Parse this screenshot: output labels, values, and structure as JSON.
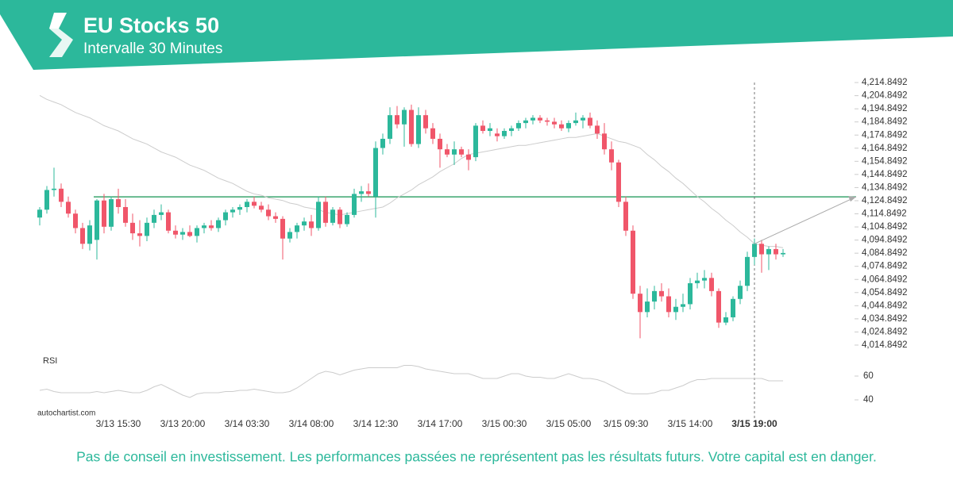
{
  "header": {
    "title": "EU Stocks 50",
    "subtitle": "Intervalle 30 Minutes"
  },
  "chart_data": {
    "type": "candlestick",
    "categories": [
      null,
      null,
      null,
      null,
      null,
      null,
      null,
      null,
      null,
      null,
      null,
      "3/13 15:30",
      null,
      null,
      null,
      null,
      null,
      null,
      null,
      null,
      "3/13 20:00",
      null,
      null,
      null,
      null,
      null,
      null,
      null,
      null,
      "3/14 03:30",
      null,
      null,
      null,
      null,
      null,
      null,
      null,
      null,
      "3/14 08:00",
      null,
      null,
      null,
      null,
      null,
      null,
      null,
      null,
      "3/14 12:30",
      null,
      null,
      null,
      null,
      null,
      null,
      null,
      null,
      "3/14 17:00",
      null,
      null,
      null,
      null,
      null,
      null,
      null,
      null,
      "3/15 00:30",
      null,
      null,
      null,
      null,
      null,
      null,
      null,
      null,
      "3/15 05:00",
      null,
      null,
      null,
      null,
      null,
      null,
      null,
      "3/15 09:30",
      null,
      null,
      null,
      null,
      null,
      null,
      null,
      null,
      "3/15 14:00",
      null,
      null,
      null,
      null,
      null,
      null,
      null,
      null,
      "3/15 19:00",
      null,
      null,
      null,
      null
    ],
    "ohlc": [
      [
        4112,
        4120,
        4106,
        4118
      ],
      [
        4118,
        4136,
        4115,
        4133
      ],
      [
        4133,
        4150,
        4128,
        4134
      ],
      [
        4134,
        4138,
        4120,
        4124
      ],
      [
        4124,
        4128,
        4112,
        4115
      ],
      [
        4115,
        4118,
        4100,
        4104
      ],
      [
        4104,
        4108,
        4088,
        4092
      ],
      [
        4092,
        4110,
        4087,
        4106
      ],
      [
        4095,
        4126,
        4080,
        4125
      ],
      [
        4125,
        4130,
        4100,
        4105
      ],
      [
        4105,
        4128,
        4102,
        4126
      ],
      [
        4126,
        4134,
        4115,
        4120
      ],
      [
        4120,
        4126,
        4105,
        4108
      ],
      [
        4108,
        4115,
        4095,
        4100
      ],
      [
        4100,
        4110,
        4090,
        4098
      ],
      [
        4098,
        4112,
        4094,
        4108
      ],
      [
        4108,
        4118,
        4104,
        4114
      ],
      [
        4114,
        4122,
        4110,
        4116
      ],
      [
        4116,
        4118,
        4100,
        4102
      ],
      [
        4102,
        4106,
        4096,
        4099
      ],
      [
        4099,
        4104,
        4095,
        4101
      ],
      [
        4101,
        4106,
        4097,
        4098
      ],
      [
        4098,
        4106,
        4093,
        4104
      ],
      [
        4104,
        4108,
        4100,
        4106
      ],
      [
        4106,
        4110,
        4102,
        4104
      ],
      [
        4104,
        4112,
        4101,
        4110
      ],
      [
        4110,
        4118,
        4106,
        4116
      ],
      [
        4116,
        4120,
        4112,
        4118
      ],
      [
        4118,
        4122,
        4114,
        4120
      ],
      [
        4120,
        4126,
        4116,
        4124
      ],
      [
        4124,
        4128,
        4119,
        4121
      ],
      [
        4121,
        4124,
        4116,
        4118
      ],
      [
        4118,
        4122,
        4110,
        4113
      ],
      [
        4113,
        4116,
        4108,
        4111
      ],
      [
        4111,
        4113,
        4080,
        4096
      ],
      [
        4096,
        4104,
        4093,
        4101
      ],
      [
        4101,
        4108,
        4096,
        4106
      ],
      [
        4106,
        4112,
        4102,
        4109
      ],
      [
        4109,
        4114,
        4098,
        4104
      ],
      [
        4104,
        4128,
        4102,
        4124
      ],
      [
        4124,
        4128,
        4105,
        4108
      ],
      [
        4108,
        4120,
        4106,
        4118
      ],
      [
        4118,
        4120,
        4104,
        4107
      ],
      [
        4107,
        4116,
        4105,
        4114
      ],
      [
        4114,
        4134,
        4112,
        4130
      ],
      [
        4130,
        4136,
        4124,
        4132
      ],
      [
        4132,
        4138,
        4128,
        4130
      ],
      [
        4128,
        4170,
        4112,
        4165
      ],
      [
        4165,
        4176,
        4160,
        4172
      ],
      [
        4172,
        4196,
        4168,
        4190
      ],
      [
        4190,
        4197,
        4180,
        4183
      ],
      [
        4183,
        4196,
        4166,
        4194
      ],
      [
        4194,
        4198,
        4166,
        4168
      ],
      [
        4168,
        4196,
        4165,
        4190
      ],
      [
        4190,
        4194,
        4176,
        4180
      ],
      [
        4180,
        4184,
        4168,
        4172
      ],
      [
        4172,
        4176,
        4150,
        4164
      ],
      [
        4164,
        4168,
        4158,
        4160
      ],
      [
        4160,
        4170,
        4152,
        4164
      ],
      [
        4164,
        4166,
        4158,
        4160
      ],
      [
        4160,
        4164,
        4148,
        4156
      ],
      [
        4158,
        4184,
        4155,
        4182
      ],
      [
        4182,
        4186,
        4176,
        4178
      ],
      [
        4178,
        4184,
        4174,
        4180
      ],
      [
        4176,
        4180,
        4170,
        4174
      ],
      [
        4174,
        4180,
        4172,
        4178
      ],
      [
        4178,
        4182,
        4174,
        4180
      ],
      [
        4180,
        4186,
        4178,
        4184
      ],
      [
        4184,
        4188,
        4180,
        4186
      ],
      [
        4186,
        4190,
        4183,
        4188
      ],
      [
        4188,
        4190,
        4184,
        4186
      ],
      [
        4186,
        4188,
        4182,
        4185
      ],
      [
        4185,
        4188,
        4180,
        4183
      ],
      [
        4183,
        4186,
        4178,
        4180
      ],
      [
        4180,
        4186,
        4177,
        4184
      ],
      [
        4184,
        4192,
        4182,
        4186
      ],
      [
        4186,
        4190,
        4180,
        4188
      ],
      [
        4188,
        4192,
        4180,
        4182
      ],
      [
        4182,
        4186,
        4172,
        4176
      ],
      [
        4176,
        4184,
        4160,
        4164
      ],
      [
        4164,
        4170,
        4148,
        4154
      ],
      [
        4154,
        4156,
        4120,
        4124
      ],
      [
        4124,
        4128,
        4098,
        4102
      ],
      [
        4102,
        4106,
        4050,
        4054
      ],
      [
        4054,
        4060,
        4020,
        4040
      ],
      [
        4040,
        4058,
        4036,
        4048
      ],
      [
        4048,
        4060,
        4042,
        4056
      ],
      [
        4056,
        4062,
        4048,
        4052
      ],
      [
        4052,
        4058,
        4036,
        4040
      ],
      [
        4040,
        4050,
        4034,
        4044
      ],
      [
        4044,
        4054,
        4040,
        4046
      ],
      [
        4046,
        4066,
        4042,
        4062
      ],
      [
        4062,
        4070,
        4058,
        4064
      ],
      [
        4064,
        4072,
        4058,
        4066
      ],
      [
        4066,
        4070,
        4052,
        4056
      ],
      [
        4056,
        4058,
        4028,
        4032
      ],
      [
        4032,
        4040,
        4030,
        4036
      ],
      [
        4036,
        4052,
        4033,
        4050
      ],
      [
        4050,
        4064,
        4046,
        4060
      ],
      [
        4060,
        4086,
        4056,
        4082
      ],
      [
        4082,
        4096,
        4076,
        4092
      ],
      [
        4092,
        4095,
        4070,
        4084
      ],
      [
        4084,
        4090,
        4072,
        4088
      ],
      [
        4088,
        4092,
        4080,
        4084
      ],
      [
        4084,
        4088,
        4082,
        4085
      ]
    ],
    "up_color": "#2cb89b",
    "down_color": "#f0566a",
    "ma": [
      4205,
      4202,
      4200,
      4198,
      4195,
      4192,
      4190,
      4188,
      4185,
      4182,
      4180,
      4178,
      4175,
      4172,
      4170,
      4168,
      4165,
      4162,
      4160,
      4158,
      4155,
      4152,
      4150,
      4148,
      4145,
      4142,
      4140,
      4138,
      4135,
      4132,
      4130,
      4129,
      4127,
      4126,
      4125,
      4123,
      4122,
      4120,
      4119,
      4118,
      4116,
      4115,
      4114,
      4115,
      4116,
      4117,
      4118,
      4119,
      4120,
      4123,
      4127,
      4130,
      4133,
      4137,
      4140,
      4143,
      4147,
      4150,
      4153,
      4157,
      4160,
      4161,
      4162,
      4163,
      4164,
      4165,
      4166,
      4167,
      4167,
      4168,
      4169,
      4170,
      4171,
      4172,
      4173,
      4173,
      4174,
      4175,
      4176,
      4174,
      4172,
      4170,
      4169,
      4167,
      4165,
      4160,
      4156,
      4151,
      4147,
      4142,
      4138,
      4133,
      4128,
      4124,
      4119,
      4115,
      4110,
      4106,
      4101,
      4097,
      4092,
      4091,
      4090,
      4090,
      4089
    ],
    "ma_color": "#cccccc",
    "level": 4127.8,
    "level_color": "#3aa56e",
    "ylim": [
      4004.8492,
      4224.8492
    ],
    "yticks": [
      {
        "value": 4014.8492,
        "label": "4,014.8492"
      },
      {
        "value": 4024.8492,
        "label": "4,024.8492"
      },
      {
        "value": 4034.8492,
        "label": "4,034.8492"
      },
      {
        "value": 4044.8492,
        "label": "4,044.8492"
      },
      {
        "value": 4054.8492,
        "label": "4,054.8492"
      },
      {
        "value": 4064.8492,
        "label": "4,064.8492"
      },
      {
        "value": 4074.8492,
        "label": "4,074.8492"
      },
      {
        "value": 4084.8492,
        "label": "4,084.8492"
      },
      {
        "value": 4094.8492,
        "label": "4,094.8492"
      },
      {
        "value": 4104.8492,
        "label": "4,104.8492"
      },
      {
        "value": 4114.8492,
        "label": "4,114.8492"
      },
      {
        "value": 4124.8492,
        "label": "4,124.8492"
      },
      {
        "value": 4134.8492,
        "label": "4,134.8492"
      },
      {
        "value": 4144.8492,
        "label": "4,144.8492"
      },
      {
        "value": 4154.8492,
        "label": "4,154.8492"
      },
      {
        "value": 4164.8492,
        "label": "4,164.8492"
      },
      {
        "value": 4174.8492,
        "label": "4,174.8492"
      },
      {
        "value": 4184.8492,
        "label": "4,184.8492"
      },
      {
        "value": 4194.8492,
        "label": "4,194.8492"
      },
      {
        "value": 4204.8492,
        "label": "4,204.8492"
      },
      {
        "value": 4214.8492,
        "label": "4,214.8492"
      }
    ],
    "rsi_label": "RSI",
    "rsi": [
      48,
      49,
      47,
      46,
      46,
      46,
      46,
      46,
      47,
      46,
      47,
      48,
      47,
      46,
      46,
      48,
      51,
      53,
      50,
      47,
      44,
      42,
      45,
      46,
      46,
      46,
      47,
      47,
      48,
      48,
      49,
      48,
      47,
      46,
      46,
      47,
      50,
      54,
      58,
      62,
      64,
      63,
      61,
      63,
      65,
      66,
      67,
      67,
      67,
      67,
      67,
      69,
      69,
      68,
      66,
      65,
      64,
      63,
      62,
      62,
      62,
      60,
      58,
      58,
      58,
      60,
      62,
      62,
      60,
      59,
      59,
      58,
      58,
      60,
      62,
      60,
      58,
      58,
      57,
      55,
      52,
      49,
      46,
      45,
      45,
      45,
      46,
      48,
      48,
      50,
      52,
      55,
      57,
      57,
      58,
      58,
      58,
      58,
      58,
      58,
      58,
      58,
      56,
      56,
      56
    ],
    "rsi_color": "#cccccc",
    "rsilim": [
      36,
      70
    ],
    "rsiticks": [
      40,
      60
    ],
    "marker_index": 100
  },
  "footer": {
    "source": "autochartist.com",
    "disclaimer": "Pas de conseil en investissement. Les performances passées ne représentent pas les résultats futurs. Votre capital est en danger."
  }
}
